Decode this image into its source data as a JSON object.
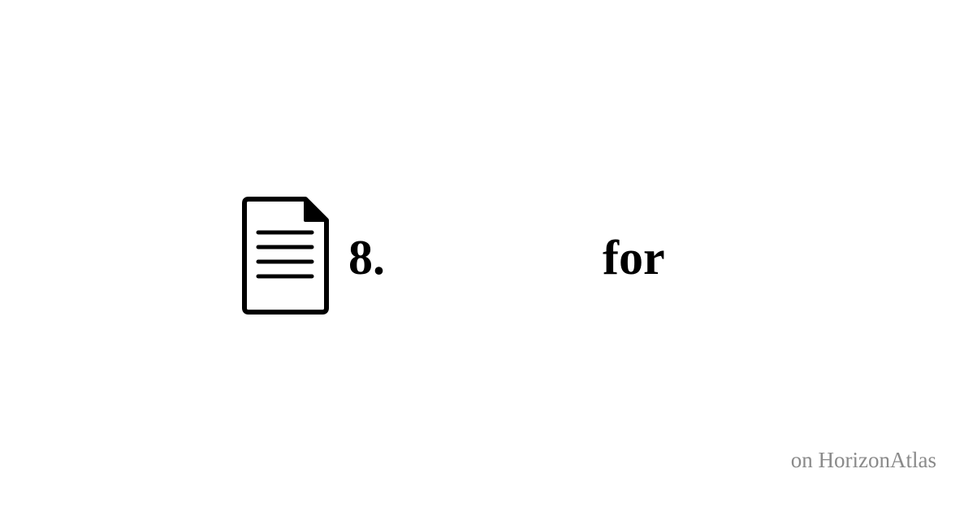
{
  "icon": {
    "name": "document-icon"
  },
  "title": {
    "number": "8.",
    "word": "for"
  },
  "footer": {
    "brand_text": "on HorizonAtlas"
  },
  "colors": {
    "background": "#ffffff",
    "text": "#000000",
    "footer_text": "#8a8a8a"
  }
}
